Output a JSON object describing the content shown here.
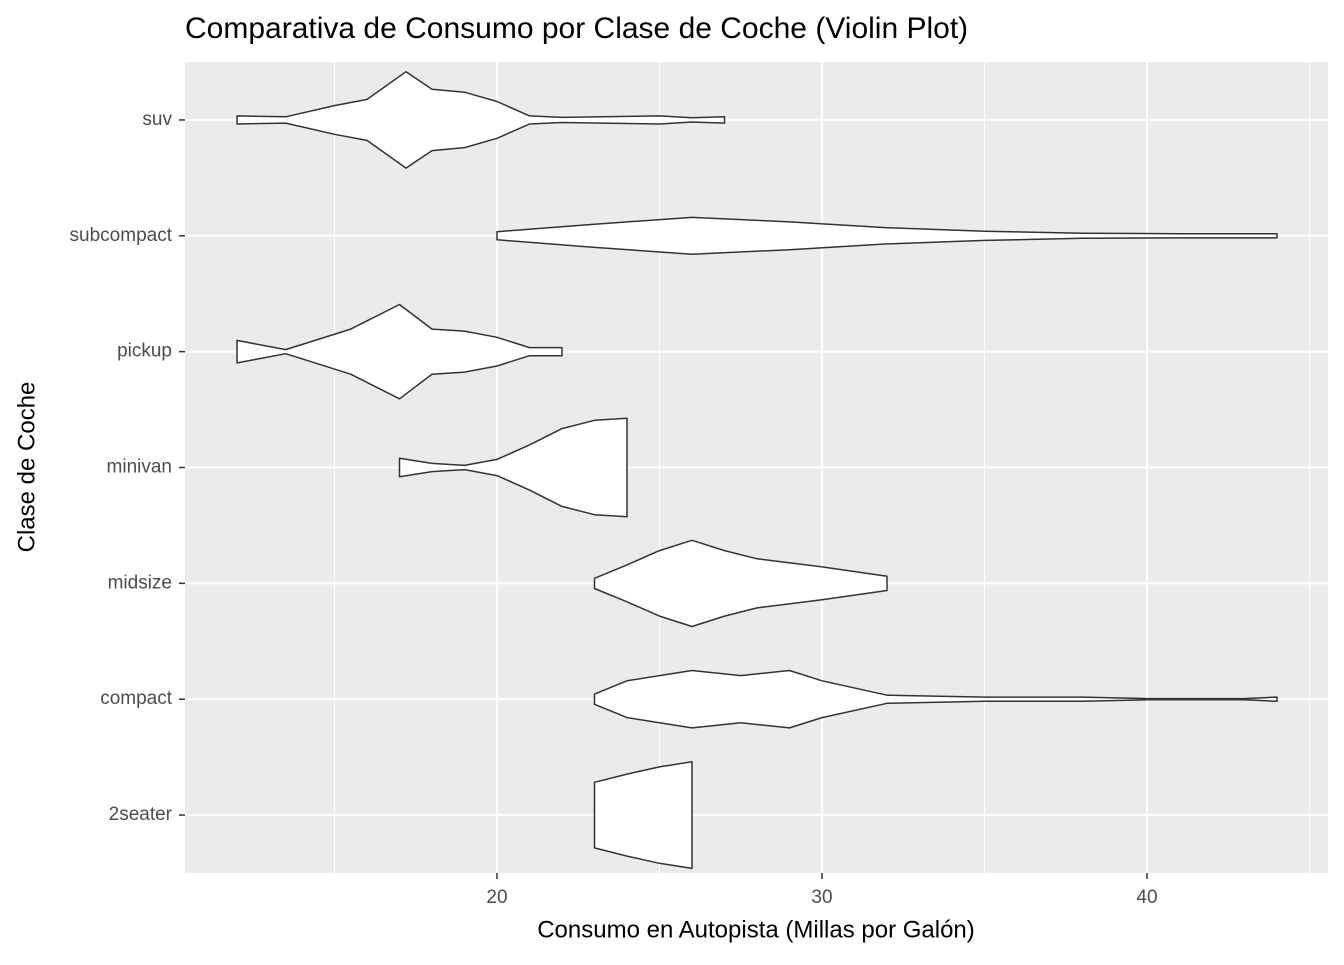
{
  "chart_data": {
    "type": "violin",
    "title": "Comparativa de Consumo por Clase de Coche (Violin Plot)",
    "x_label": "Consumo en Autopista (Millas por Galón)",
    "y_label": "Clase de Coche",
    "categories": [
      "2seater",
      "compact",
      "midsize",
      "minivan",
      "pickup",
      "subcompact",
      "suv"
    ],
    "violins": [
      {
        "x": [
          23,
          24,
          25,
          26
        ],
        "widths": [
          0.283,
          0.354,
          0.416,
          0.46
        ]
      },
      {
        "x": [
          23,
          24,
          26,
          27.5,
          29,
          30,
          32,
          35,
          38,
          40,
          43,
          44
        ],
        "widths": [
          0.044,
          0.159,
          0.248,
          0.204,
          0.248,
          0.159,
          0.035,
          0.018,
          0.018,
          0.005,
          0.005,
          0.018
        ]
      },
      {
        "x": [
          23,
          24,
          25,
          26,
          27,
          28,
          30,
          32
        ],
        "widths": [
          0.044,
          0.159,
          0.283,
          0.372,
          0.283,
          0.212,
          0.142,
          0.062
        ]
      },
      {
        "x": [
          17,
          18,
          19,
          20,
          21,
          22,
          23,
          24
        ],
        "widths": [
          0.08,
          0.035,
          0.018,
          0.07,
          0.195,
          0.336,
          0.407,
          0.425
        ]
      },
      {
        "x": [
          12,
          13.5,
          15.5,
          17,
          18,
          19,
          20,
          21,
          22
        ],
        "widths": [
          0.097,
          0.018,
          0.195,
          0.407,
          0.195,
          0.177,
          0.124,
          0.035,
          0.035
        ]
      },
      {
        "x": [
          20,
          23,
          26,
          29,
          32,
          35,
          38,
          41,
          44
        ],
        "widths": [
          0.035,
          0.1,
          0.159,
          0.12,
          0.07,
          0.04,
          0.022,
          0.018,
          0.018
        ]
      },
      {
        "x": [
          12,
          13.5,
          15,
          16,
          17.2,
          18,
          19,
          20,
          21,
          22,
          25,
          26,
          27
        ],
        "widths": [
          0.035,
          0.027,
          0.124,
          0.177,
          0.416,
          0.265,
          0.239,
          0.159,
          0.035,
          0.022,
          0.035,
          0.018,
          0.027
        ]
      }
    ],
    "fill": "#ffffff",
    "line_color": "#333333",
    "xlim": [
      10.4,
      45.57
    ],
    "xticks": [
      20,
      30,
      40
    ],
    "minor_xticks": [
      15,
      25,
      35,
      45
    ],
    "panel_color": "#ebebeb",
    "grid": true
  }
}
